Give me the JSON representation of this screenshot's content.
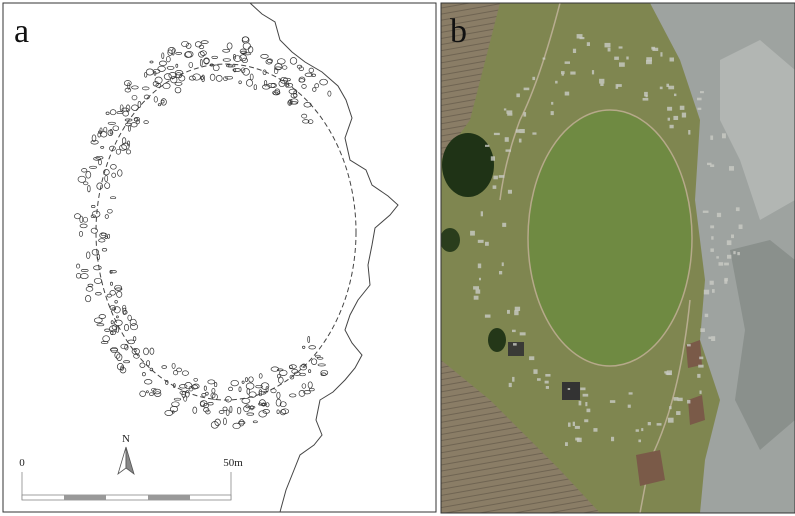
{
  "panels": [
    {
      "label": "a"
    },
    {
      "label": "b"
    }
  ],
  "north_arrow": {
    "label": "N"
  },
  "scale_bar": {
    "start_label": "0",
    "end_label": "50m"
  }
}
